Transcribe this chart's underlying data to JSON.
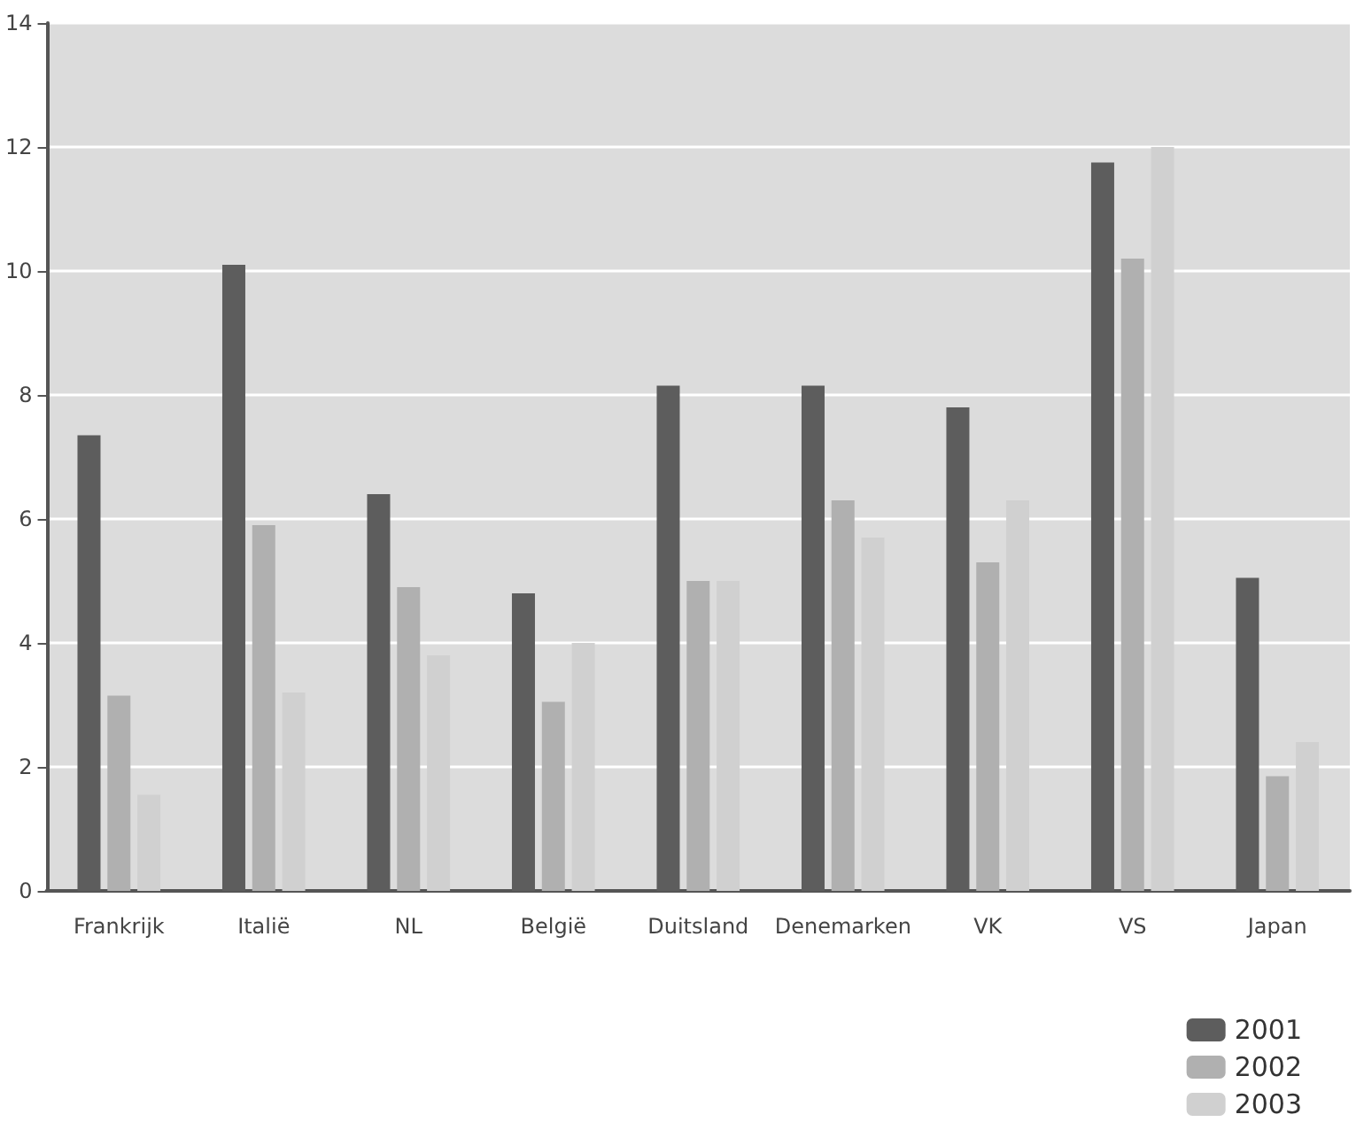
{
  "chart_data": {
    "type": "bar",
    "categories": [
      "Frankrijk",
      "Italië",
      "NL",
      "België",
      "Duitsland",
      "Denemarken",
      "VK",
      "VS",
      "Japan"
    ],
    "series": [
      {
        "name": "2001",
        "color": "#5d5d5d",
        "values": [
          7.35,
          10.1,
          6.4,
          4.8,
          8.15,
          8.15,
          7.8,
          11.75,
          5.05
        ]
      },
      {
        "name": "2002",
        "color": "#b0b0b0",
        "values": [
          3.15,
          5.9,
          4.9,
          3.05,
          5.0,
          6.3,
          5.3,
          10.2,
          1.85
        ]
      },
      {
        "name": "2003",
        "color": "#d0d0d0",
        "values": [
          1.55,
          3.2,
          3.8,
          4.0,
          5.0,
          5.7,
          6.3,
          12.0,
          2.4
        ]
      }
    ],
    "ylim": [
      0,
      14
    ],
    "yticks": [
      0,
      2,
      4,
      6,
      8,
      10,
      12,
      14
    ],
    "grid": "y",
    "legend": "bottom right"
  }
}
